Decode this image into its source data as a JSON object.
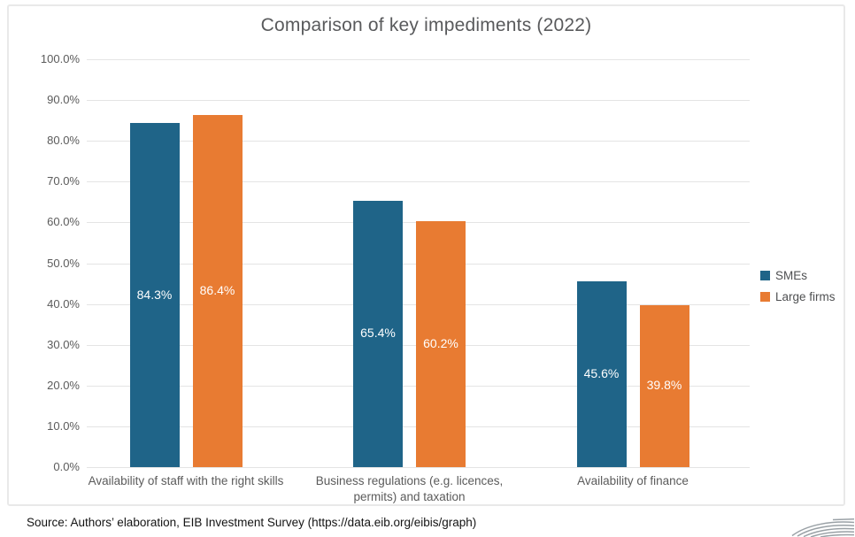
{
  "page": {
    "source_note": "Source: Authors’ elaboration, EIB Investment Survey (https://data.eib.org/eibis/graph)"
  },
  "chart_data": {
    "type": "bar",
    "title": "Comparison of key impediments (2022)",
    "categories": [
      "Availability of staff with the right skills",
      "Business regulations (e.g. licences, permits) and taxation",
      "Availability of finance"
    ],
    "series": [
      {
        "name": "SMEs",
        "color": "#1f6488",
        "values": [
          84.3,
          65.4,
          45.6
        ],
        "labels": [
          "84.3%",
          "65.4%",
          "45.6%"
        ]
      },
      {
        "name": "Large firms",
        "color": "#e87b32",
        "values": [
          86.4,
          60.2,
          39.8
        ],
        "labels": [
          "86.4%",
          "60.2%",
          "39.8%"
        ]
      }
    ],
    "ylim": [
      0,
      100
    ],
    "ytick_step": 10,
    "yticks": [
      "100.0%",
      "90.0%",
      "80.0%",
      "70.0%",
      "60.0%",
      "50.0%",
      "40.0%",
      "30.0%",
      "20.0%",
      "10.0%",
      "0.0%"
    ],
    "grid": true,
    "legend_position": "right",
    "colors": {
      "grid": "#e4e4e4",
      "title_text": "#595a5c",
      "axis_text": "#5b5b5b",
      "data_label_text": "#ffffff"
    }
  }
}
